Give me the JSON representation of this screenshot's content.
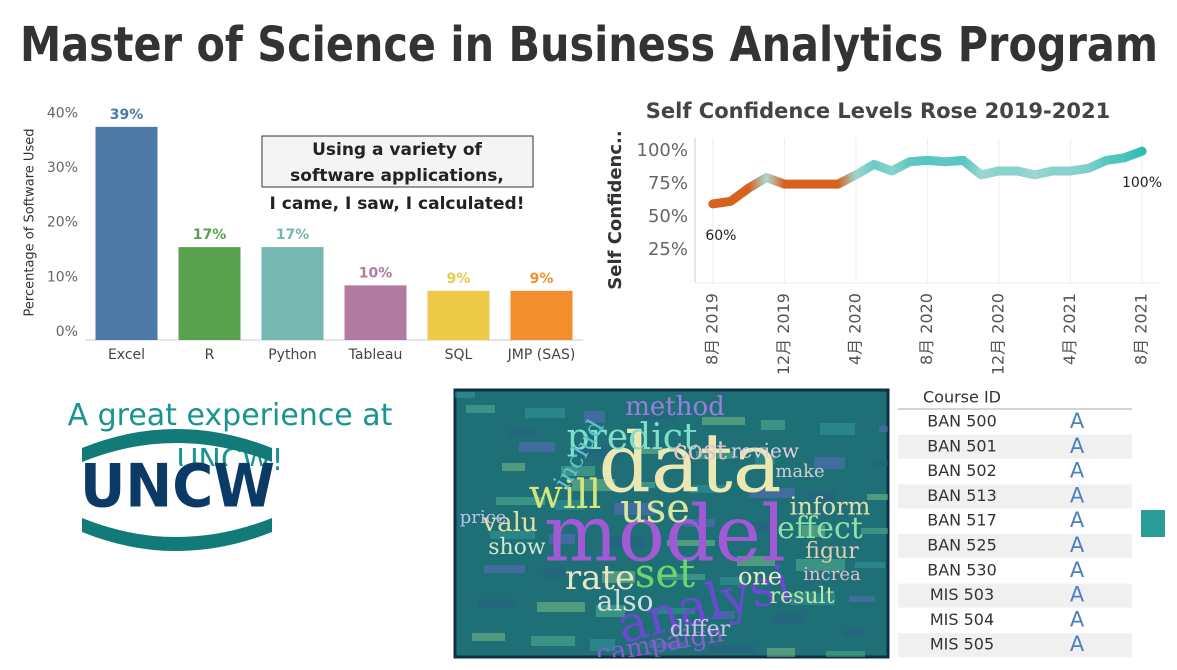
{
  "title": "Master of Science in Business Analytics Program",
  "chart_data": [
    {
      "type": "bar",
      "y_label": "Percentage of Software Used",
      "categories": [
        "Excel",
        "R",
        "Python",
        "Tableau",
        "SQL",
        "JMP (SAS)"
      ],
      "values": [
        39,
        17,
        17,
        10,
        9,
        9
      ],
      "value_labels": [
        "39%",
        "17%",
        "17%",
        "10%",
        "9%",
        "9%"
      ],
      "colors": [
        "#4e79a7",
        "#59a14f",
        "#76b7b2",
        "#b07aa1",
        "#edc948",
        "#f28e2b"
      ],
      "ylim": [
        0,
        43
      ],
      "yticks": [
        {
          "value": 0,
          "label": "0%"
        },
        {
          "value": 10,
          "label": "10%"
        },
        {
          "value": 20,
          "label": "20%"
        },
        {
          "value": 30,
          "label": "30%"
        },
        {
          "value": 40,
          "label": "40%"
        }
      ],
      "grid": false
    },
    {
      "type": "line",
      "title": "Self Confidence Levels Rose 2019-2021",
      "y_label": "Self Confidenc..",
      "x": [
        "2019-08",
        "2019-09",
        "2019-10",
        "2019-11",
        "2019-12",
        "2020-01",
        "2020-02",
        "2020-03",
        "2020-04",
        "2020-05",
        "2020-06",
        "2020-07",
        "2020-08",
        "2020-09",
        "2020-10",
        "2020-11",
        "2020-12",
        "2021-01",
        "2021-02",
        "2021-03",
        "2021-04",
        "2021-05",
        "2021-06",
        "2021-07",
        "2021-08"
      ],
      "series": [
        {
          "name": "Self Confidence",
          "colors": [
            "#d6621e",
            "#b6dcd7",
            "#2bbcb4"
          ],
          "values": [
            60,
            62,
            72,
            80,
            75,
            75,
            75,
            75,
            82,
            90,
            85,
            92,
            93,
            92,
            93,
            82,
            85,
            85,
            82,
            85,
            85,
            87,
            93,
            95,
            100
          ],
          "value_labels": [
            "60%",
            null,
            null,
            null,
            null,
            null,
            null,
            null,
            null,
            null,
            null,
            null,
            null,
            null,
            null,
            null,
            null,
            null,
            null,
            null,
            null,
            null,
            null,
            null,
            "100%"
          ]
        }
      ],
      "xlim": [
        "2019-07",
        "2021-09"
      ],
      "xticks": [
        {
          "value": "2019-08",
          "label": "8月 2019"
        },
        {
          "value": "2019-12",
          "label": "12月 2019"
        },
        {
          "value": "2020-04",
          "label": "4月 2020"
        },
        {
          "value": "2020-08",
          "label": "8月 2020"
        },
        {
          "value": "2020-12",
          "label": "12月 2020"
        },
        {
          "value": "2021-04",
          "label": "4月 2021"
        },
        {
          "value": "2021-08",
          "label": "8月 2021"
        }
      ],
      "ylim": [
        0,
        110
      ],
      "yticks": [
        {
          "value": 25,
          "label": "25%"
        },
        {
          "value": 50,
          "label": "50%"
        },
        {
          "value": 75,
          "label": "75%"
        },
        {
          "value": 100,
          "label": "100%"
        }
      ],
      "grid": true
    }
  ],
  "callout": [
    "Using a variety of",
    "software applications,",
    "I came, I saw, I calculated!"
  ],
  "tagline": "A great experience at UNCW!",
  "logo": "UNCW",
  "word_cloud": {
    "words": [
      "data",
      "model",
      "use",
      "predict",
      "analysi",
      "will",
      "set",
      "rate",
      "method",
      "campaign",
      "inform",
      "effect",
      "also",
      "cost",
      "result",
      "show",
      "valu",
      "includ",
      "one",
      "review",
      "price",
      "figur",
      "differ",
      "increa",
      "make"
    ]
  },
  "table": {
    "header": [
      "Course ID"
    ],
    "rows": [
      [
        "BAN 500",
        "A"
      ],
      [
        "BAN 501",
        "A"
      ],
      [
        "BAN 502",
        "A"
      ],
      [
        "BAN 513",
        "A"
      ],
      [
        "BAN 517",
        "A"
      ],
      [
        "BAN 525",
        "A"
      ],
      [
        "BAN 530",
        "A"
      ],
      [
        "MIS 503",
        "A"
      ],
      [
        "MIS 504",
        "A"
      ],
      [
        "MIS 505",
        "A"
      ]
    ]
  }
}
